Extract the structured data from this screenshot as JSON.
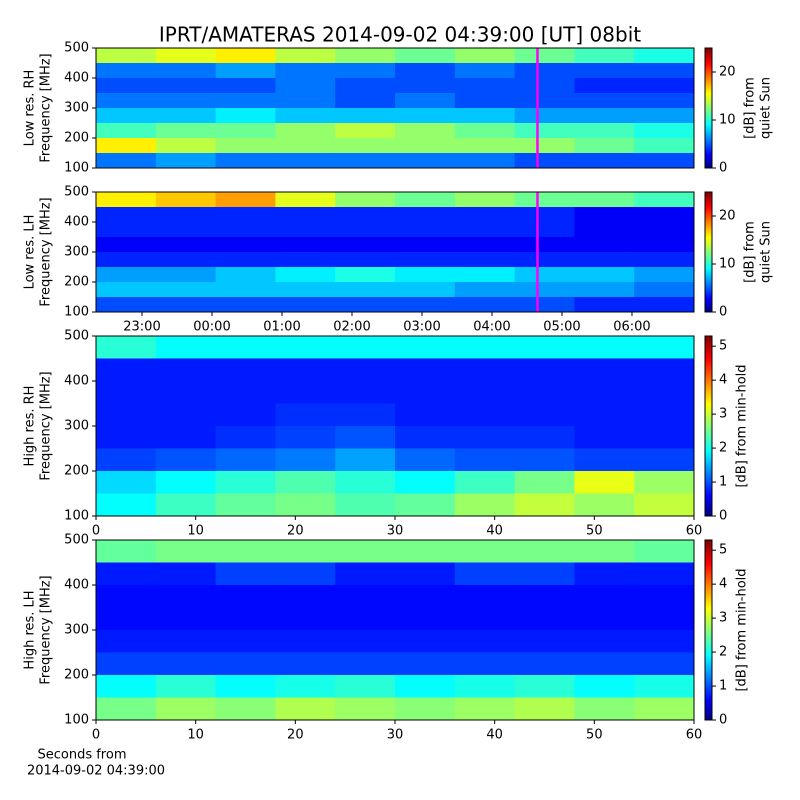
{
  "title": "IPRT/AMATERAS 2014-09-02 04:39:00 [UT]   08bit",
  "chart_data": [
    {
      "type": "heatmap",
      "ylabel": [
        "Low res. RH",
        "Frequency [MHz]"
      ],
      "xlim": [
        -1.657,
        6.886
      ],
      "ylim": [
        100,
        500
      ],
      "yticks": [
        100,
        200,
        300,
        400,
        500
      ],
      "clim": [
        0,
        25
      ],
      "cticks": [
        0,
        10,
        20
      ],
      "clabel": [
        "[dB] from",
        "quiet Sun"
      ],
      "marker_x": 4.65,
      "marker_color": "#ff00ff",
      "z": [
        [
          14,
          15,
          16,
          14,
          13,
          12,
          13,
          12,
          11,
          10
        ],
        [
          6,
          6,
          7,
          6,
          6,
          5,
          6,
          5,
          5,
          5
        ],
        [
          5,
          5,
          5,
          6,
          5,
          5,
          5,
          5,
          4,
          4
        ],
        [
          6,
          6,
          6,
          6,
          5,
          6,
          5,
          5,
          5,
          5
        ],
        [
          8,
          8,
          9,
          8,
          8,
          8,
          8,
          7,
          7,
          7
        ],
        [
          11,
          12,
          12,
          13,
          14,
          13,
          12,
          11,
          11,
          10
        ],
        [
          16,
          14,
          13,
          13,
          13,
          13,
          13,
          13,
          12,
          11
        ],
        [
          6,
          7,
          6,
          6,
          6,
          6,
          6,
          5,
          5,
          5
        ]
      ]
    },
    {
      "type": "heatmap",
      "ylabel": [
        "Low res. LH",
        "Frequency [MHz]"
      ],
      "xlim": [
        -1.657,
        6.886
      ],
      "ylim": [
        100,
        500
      ],
      "yticks": [
        100,
        200,
        300,
        400,
        500
      ],
      "xticks": [
        {
          "value": -1,
          "label": "23:00"
        },
        {
          "value": 0,
          "label": "00:00"
        },
        {
          "value": 1,
          "label": "01:00"
        },
        {
          "value": 2,
          "label": "02:00"
        },
        {
          "value": 3,
          "label": "03:00"
        },
        {
          "value": 4,
          "label": "04:00"
        },
        {
          "value": 5,
          "label": "05:00"
        },
        {
          "value": 6,
          "label": "06:00"
        }
      ],
      "clim": [
        0,
        25
      ],
      "cticks": [
        0,
        10,
        20
      ],
      "clabel": [
        "[dB] from",
        "quiet Sun"
      ],
      "marker_x": 4.65,
      "marker_color": "#ff00ff",
      "z": [
        [
          16,
          17,
          18,
          15,
          13,
          12,
          13,
          12,
          12,
          11
        ],
        [
          4,
          4,
          4,
          4,
          4,
          4,
          4,
          4,
          3,
          3
        ],
        [
          4,
          4,
          4,
          4,
          4,
          4,
          4,
          4,
          3,
          3
        ],
        [
          3,
          3,
          3,
          3,
          3,
          3,
          3,
          3,
          3,
          3
        ],
        [
          4,
          4,
          4,
          4,
          4,
          4,
          4,
          4,
          4,
          4
        ],
        [
          7,
          7,
          8,
          9,
          10,
          9,
          9,
          8,
          8,
          7
        ],
        [
          8,
          8,
          8,
          8,
          8,
          8,
          7,
          7,
          7,
          6
        ],
        [
          5,
          5,
          5,
          5,
          5,
          5,
          5,
          5,
          4,
          4
        ]
      ]
    },
    {
      "type": "heatmap",
      "ylabel": [
        "High res. RH",
        "Frequency [MHz]"
      ],
      "xlim": [
        0,
        60
      ],
      "xticks": [
        0,
        10,
        20,
        30,
        40,
        50,
        60
      ],
      "ylim": [
        100,
        500
      ],
      "yticks": [
        100,
        200,
        300,
        400,
        500
      ],
      "clim": [
        0,
        5.3
      ],
      "cticks": [
        0,
        1,
        2,
        3,
        4,
        5
      ],
      "clabel": [
        "[dB] from min-hold"
      ],
      "z": [
        [
          2.2,
          2.0,
          2.0,
          2.0,
          2.0,
          2.0,
          2.0,
          2.0,
          2.0,
          2.0
        ],
        [
          0.8,
          0.8,
          0.8,
          0.8,
          0.8,
          0.8,
          0.8,
          0.8,
          0.8,
          0.8
        ],
        [
          0.8,
          0.8,
          0.8,
          0.8,
          0.8,
          0.8,
          0.8,
          0.8,
          0.8,
          0.8
        ],
        [
          0.8,
          0.8,
          0.8,
          0.9,
          0.9,
          0.8,
          0.8,
          0.8,
          0.8,
          0.8
        ],
        [
          0.8,
          0.8,
          0.9,
          1.0,
          1.1,
          0.9,
          0.9,
          0.9,
          0.8,
          0.8
        ],
        [
          1.0,
          1.1,
          1.2,
          1.3,
          1.5,
          1.2,
          1.1,
          1.1,
          1.0,
          1.0
        ],
        [
          1.8,
          2.0,
          2.2,
          2.4,
          2.2,
          2.0,
          2.3,
          2.6,
          3.2,
          2.8
        ],
        [
          2.0,
          2.3,
          2.5,
          2.6,
          2.4,
          2.5,
          2.8,
          3.0,
          2.8,
          3.0
        ]
      ]
    },
    {
      "type": "heatmap",
      "ylabel": [
        "High res. LH",
        "Frequency [MHz]"
      ],
      "xlim": [
        0,
        60
      ],
      "xticks": [
        0,
        10,
        20,
        30,
        40,
        50,
        60
      ],
      "ylim": [
        100,
        500
      ],
      "yticks": [
        100,
        200,
        300,
        400,
        500
      ],
      "xlabel": [
        "Seconds from",
        "2014-09-02 04:39:00"
      ],
      "clim": [
        0,
        5.3
      ],
      "cticks": [
        0,
        1,
        2,
        3,
        4,
        5
      ],
      "clabel": [
        "[dB] from min-hold"
      ],
      "z": [
        [
          2.5,
          2.6,
          2.6,
          2.6,
          2.6,
          2.6,
          2.6,
          2.6,
          2.6,
          2.5
        ],
        [
          0.8,
          0.8,
          1.0,
          1.0,
          0.8,
          0.8,
          1.0,
          1.0,
          0.8,
          0.8
        ],
        [
          0.7,
          0.7,
          0.7,
          0.7,
          0.7,
          0.7,
          0.7,
          0.7,
          0.7,
          0.7
        ],
        [
          0.7,
          0.7,
          0.7,
          0.7,
          0.7,
          0.7,
          0.7,
          0.7,
          0.7,
          0.7
        ],
        [
          0.8,
          0.8,
          0.8,
          0.8,
          0.8,
          0.8,
          0.8,
          0.8,
          0.8,
          0.8
        ],
        [
          1.0,
          1.0,
          1.0,
          1.0,
          1.0,
          1.0,
          1.0,
          1.0,
          1.0,
          1.0
        ],
        [
          2.0,
          2.2,
          2.0,
          2.1,
          2.2,
          2.0,
          2.1,
          2.2,
          2.0,
          2.1
        ],
        [
          2.6,
          2.8,
          2.7,
          2.9,
          2.8,
          2.7,
          2.8,
          2.9,
          2.7,
          2.8
        ]
      ]
    }
  ]
}
